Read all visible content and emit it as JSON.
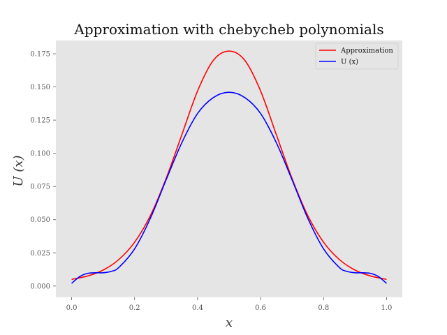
{
  "chart_data": {
    "type": "line",
    "title": "Approximation with chebycheb polynomials",
    "xlabel": "x",
    "ylabel": "U (x)",
    "xlim": [
      -0.05,
      1.05
    ],
    "ylim": [
      -0.0085,
      0.185
    ],
    "xticks": [
      0.0,
      0.2,
      0.4,
      0.6,
      0.8,
      1.0
    ],
    "xtick_labels": [
      "0.0",
      "0.2",
      "0.4",
      "0.6",
      "0.8",
      "1.0"
    ],
    "yticks": [
      0.0,
      0.025,
      0.05,
      0.075,
      0.1,
      0.125,
      0.15,
      0.175
    ],
    "ytick_labels": [
      "0.000",
      "0.025",
      "0.050",
      "0.075",
      "0.100",
      "0.125",
      "0.150",
      "0.175"
    ],
    "grid": false,
    "legend_position": "top-right",
    "background": "#e5e5e5",
    "series": [
      {
        "name": "Approximation",
        "color": "#ff0000",
        "x": [
          0.0,
          0.05,
          0.1,
          0.15,
          0.2,
          0.25,
          0.3,
          0.35,
          0.4,
          0.45,
          0.5,
          0.55,
          0.6,
          0.65,
          0.7,
          0.75,
          0.8,
          0.85,
          0.9,
          0.95,
          1.0
        ],
        "y": [
          0.005,
          0.0075,
          0.012,
          0.02,
          0.033,
          0.053,
          0.081,
          0.114,
          0.147,
          0.17,
          0.177,
          0.17,
          0.147,
          0.114,
          0.081,
          0.053,
          0.033,
          0.02,
          0.012,
          0.0075,
          0.005
        ]
      },
      {
        "name": "U (x)",
        "color": "#0000ff",
        "x": [
          0.0,
          0.025,
          0.05,
          0.075,
          0.1,
          0.125,
          0.15,
          0.2,
          0.25,
          0.3,
          0.35,
          0.4,
          0.45,
          0.5,
          0.55,
          0.6,
          0.65,
          0.7,
          0.75,
          0.8,
          0.85,
          0.875,
          0.9,
          0.925,
          0.95,
          0.975,
          1.0
        ],
        "y": [
          0.002,
          0.007,
          0.0095,
          0.01,
          0.01,
          0.011,
          0.014,
          0.028,
          0.051,
          0.08,
          0.108,
          0.13,
          0.142,
          0.146,
          0.142,
          0.13,
          0.108,
          0.08,
          0.051,
          0.028,
          0.014,
          0.011,
          0.01,
          0.01,
          0.0095,
          0.007,
          0.002
        ]
      }
    ]
  }
}
